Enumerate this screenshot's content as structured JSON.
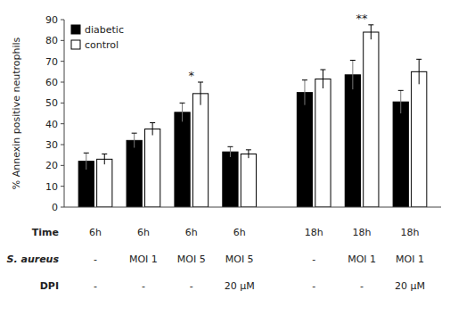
{
  "chart_data": {
    "type": "bar",
    "ylabel": "% Annexin positive neutrophils",
    "categories": [
      null,
      null,
      null,
      null,
      null,
      null,
      null
    ],
    "series": [
      {
        "name": "diabetic",
        "color": "#000000",
        "values": [
          22.0,
          32.0,
          45.5,
          26.5,
          55.0,
          63.5,
          50.5
        ],
        "errors": [
          4.0,
          3.5,
          4.5,
          2.5,
          6.0,
          7.0,
          5.5
        ]
      },
      {
        "name": "control",
        "color": "#ffffff",
        "values": [
          23.0,
          37.5,
          54.5,
          25.5,
          61.5,
          84.0,
          65.0
        ],
        "errors": [
          2.5,
          3.0,
          5.5,
          2.0,
          4.5,
          3.5,
          6.0
        ]
      }
    ],
    "annotations": [
      {
        "category": 2,
        "text": "*"
      },
      {
        "category": 5,
        "text": "**"
      }
    ],
    "table": {
      "rows": [
        {
          "label": "Time",
          "values": [
            "6h",
            "6h",
            "6h",
            "6h",
            "18h",
            "18h",
            "18h"
          ]
        },
        {
          "label": "S. aureus",
          "values": [
            "-",
            "MOI 1",
            "MOI 5",
            "MOI 5",
            "-",
            "MOI 1",
            "MOI 1"
          ]
        },
        {
          "label": "DPI",
          "values": [
            "-",
            "-",
            "-",
            "20 μM",
            "-",
            "-",
            "20 μM"
          ]
        }
      ]
    },
    "ylim": [
      0,
      90
    ],
    "yticks": [
      0,
      10,
      20,
      30,
      40,
      50,
      60,
      70,
      80,
      90
    ],
    "tick_labels": "y",
    "grid": false,
    "legend": "upper left"
  }
}
